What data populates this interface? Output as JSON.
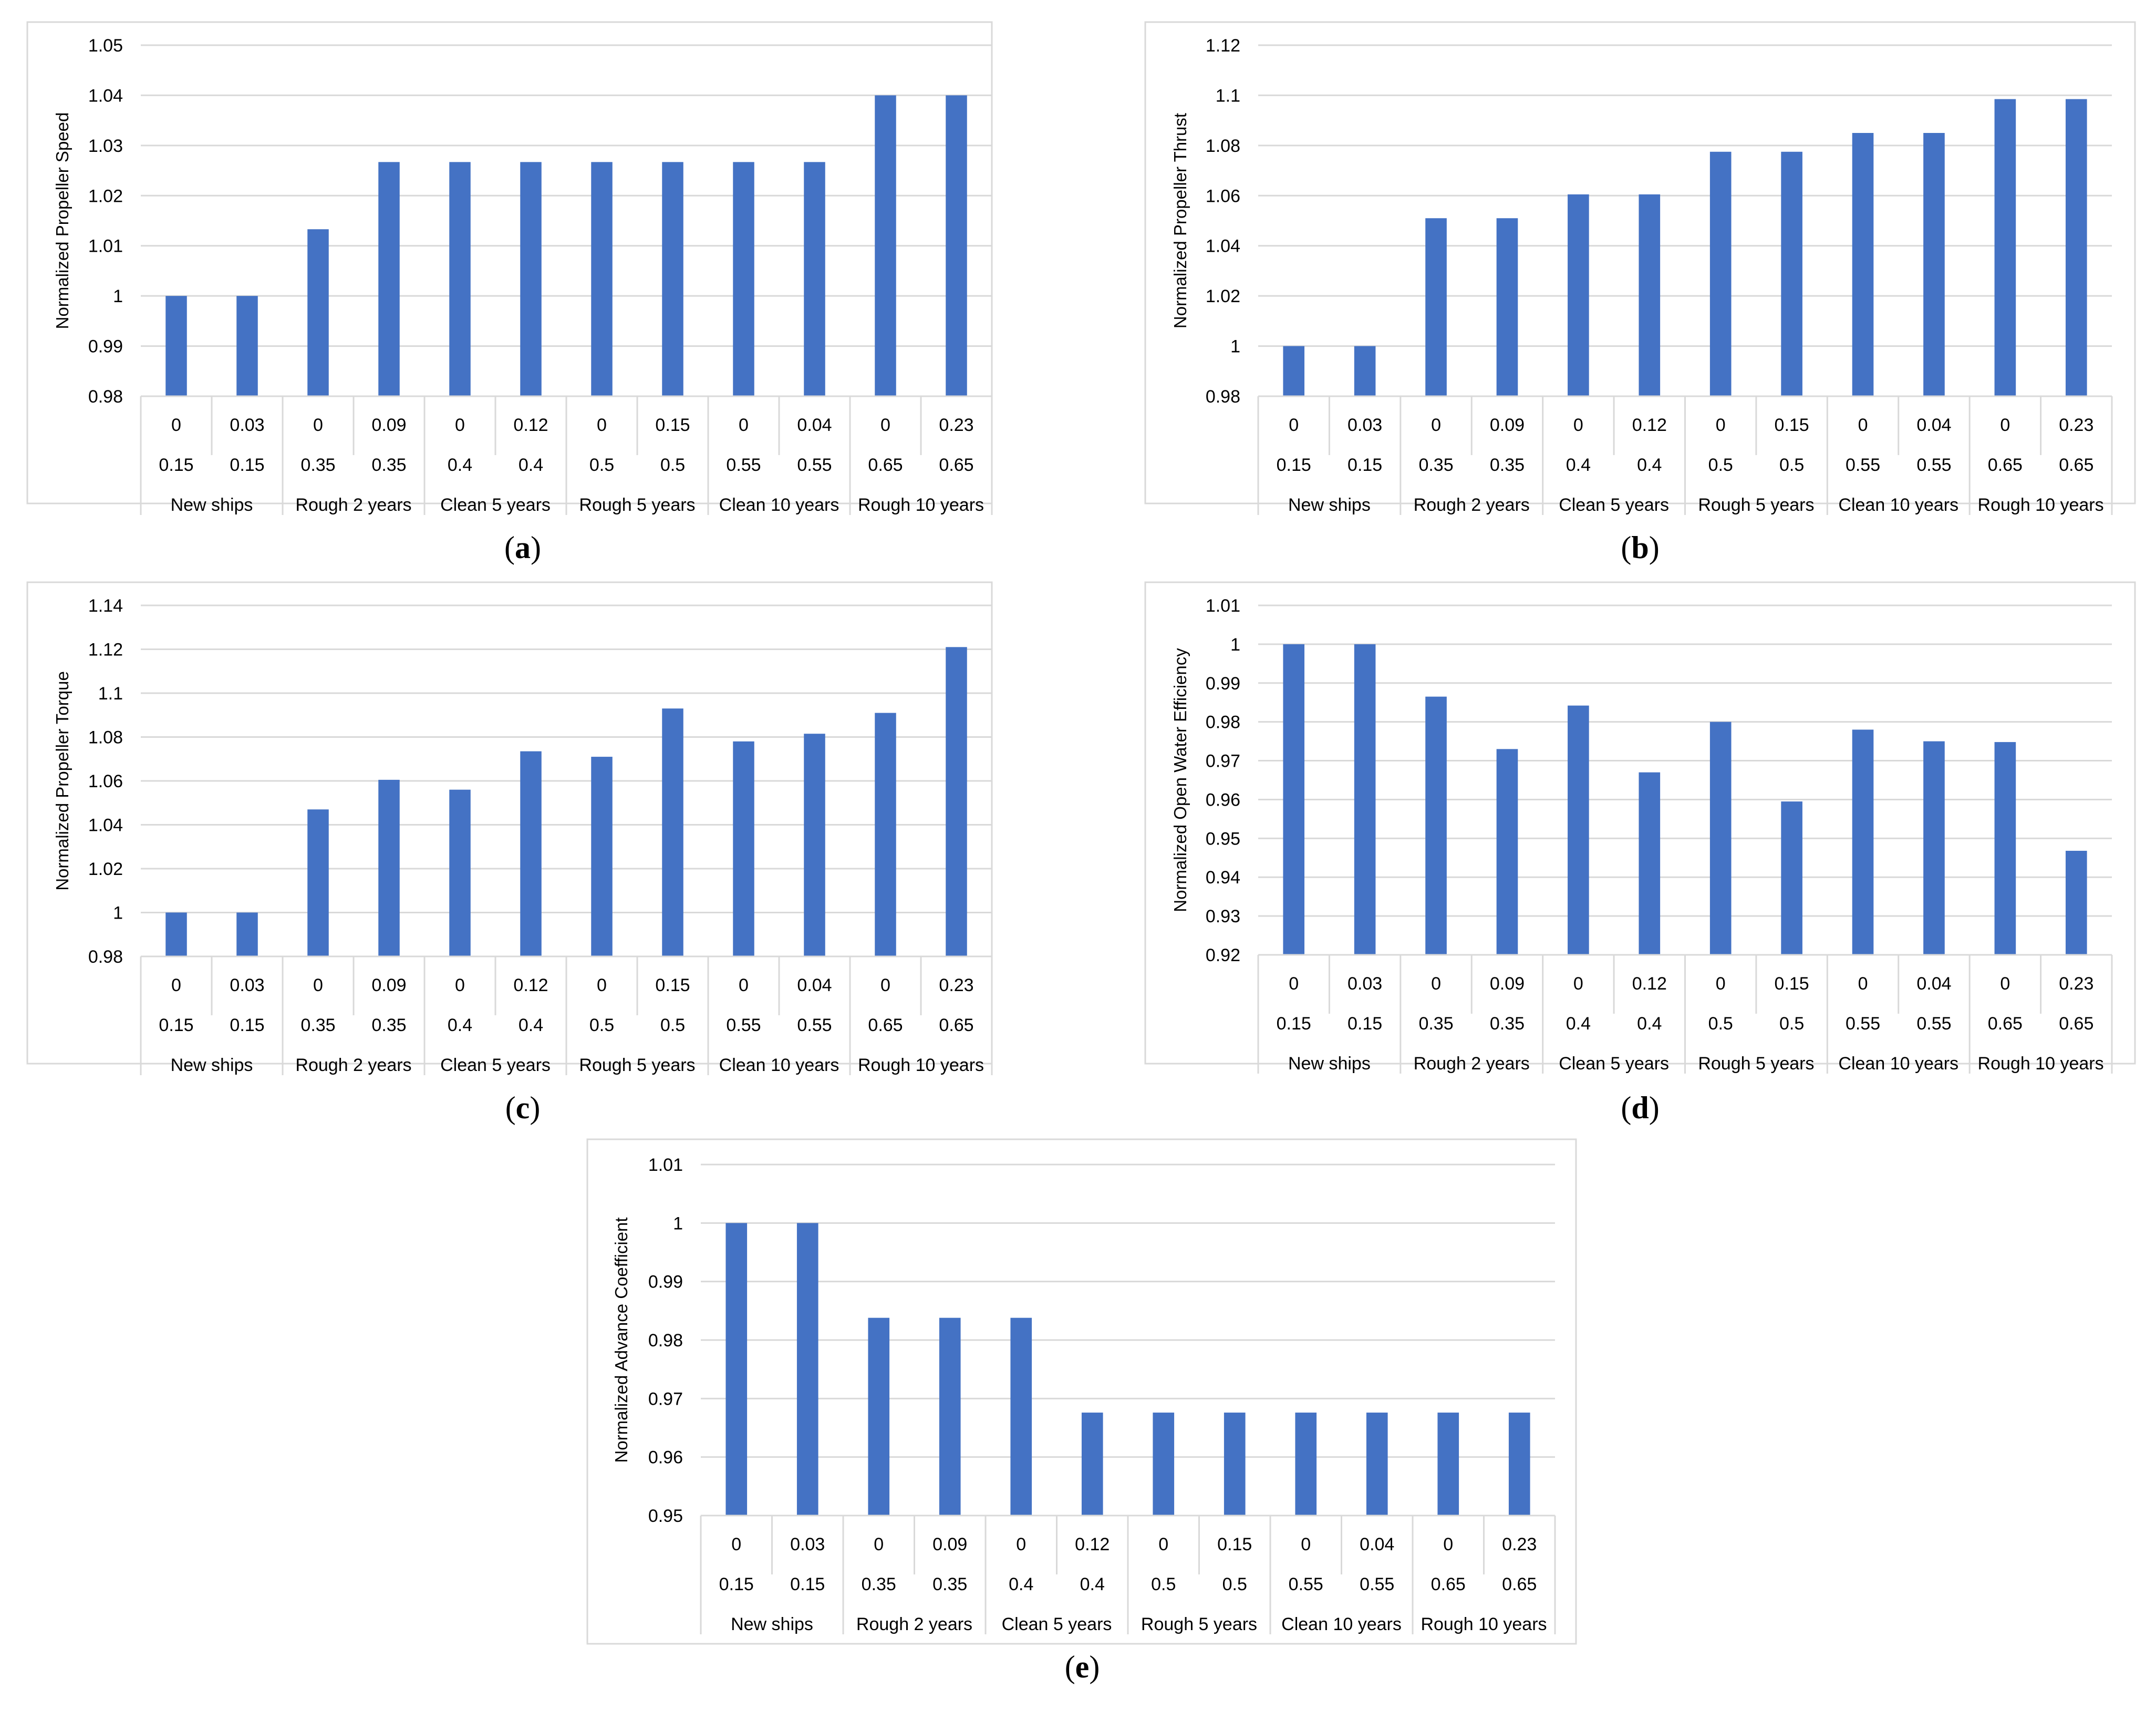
{
  "bar_color": "#4472C4",
  "grid_color": "#D9D9D9",
  "frame_color": "#D9D9D9",
  "chart_data": [
    {
      "type": "bar",
      "panel_label": "(a)",
      "ylabel": "Normalized Propeller Speed",
      "ylim": [
        0.98,
        1.05
      ],
      "yticks": [
        "0.98",
        "0.99",
        "1",
        "1.01",
        "1.02",
        "1.03",
        "1.04",
        "1.05"
      ],
      "cat_row1": [
        "0",
        "0.03",
        "0",
        "0.09",
        "0",
        "0.12",
        "0",
        "0.15",
        "0",
        "0.04",
        "0",
        "0.23"
      ],
      "cat_row2": [
        "0.15",
        "0.15",
        "0.35",
        "0.35",
        "0.4",
        "0.4",
        "0.5",
        "0.5",
        "0.55",
        "0.55",
        "0.65",
        "0.65"
      ],
      "groups": [
        "New ships",
        "Rough 2 years",
        "Clean 5 years",
        "Rough 5 years",
        "Clean 10 years",
        "Rough 10 years"
      ],
      "values": [
        1.0,
        1.0,
        1.0133,
        1.0267,
        1.0267,
        1.0267,
        1.0267,
        1.0267,
        1.0267,
        1.0267,
        1.04,
        1.04
      ],
      "grid": true
    },
    {
      "type": "bar",
      "panel_label": "(b)",
      "ylabel": "Normalized Propeller Thrust",
      "ylim": [
        0.98,
        1.12
      ],
      "yticks": [
        "0.98",
        "1",
        "1.02",
        "1.04",
        "1.06",
        "1.08",
        "1.1",
        "1.12"
      ],
      "cat_row1": [
        "0",
        "0.03",
        "0",
        "0.09",
        "0",
        "0.12",
        "0",
        "0.15",
        "0",
        "0.04",
        "0",
        "0.23"
      ],
      "cat_row2": [
        "0.15",
        "0.15",
        "0.35",
        "0.35",
        "0.4",
        "0.4",
        "0.5",
        "0.5",
        "0.55",
        "0.55",
        "0.65",
        "0.65"
      ],
      "groups": [
        "New ships",
        "Rough 2 years",
        "Clean 5 years",
        "Rough 5 years",
        "Clean 10 years",
        "Rough 10 years"
      ],
      "values": [
        1.0,
        1.0,
        1.051,
        1.051,
        1.0605,
        1.0605,
        1.0775,
        1.0775,
        1.085,
        1.085,
        1.0985,
        1.0985
      ],
      "grid": true
    },
    {
      "type": "bar",
      "panel_label": "(c)",
      "ylabel": "Normalized Propeller Torque",
      "ylim": [
        0.98,
        1.14
      ],
      "yticks": [
        "0.98",
        "1",
        "1.02",
        "1.04",
        "1.06",
        "1.08",
        "1.1",
        "1.12",
        "1.14"
      ],
      "cat_row1": [
        "0",
        "0.03",
        "0",
        "0.09",
        "0",
        "0.12",
        "0",
        "0.15",
        "0",
        "0.04",
        "0",
        "0.23"
      ],
      "cat_row2": [
        "0.15",
        "0.15",
        "0.35",
        "0.35",
        "0.4",
        "0.4",
        "0.5",
        "0.5",
        "0.55",
        "0.55",
        "0.65",
        "0.65"
      ],
      "groups": [
        "New ships",
        "Rough 2 years",
        "Clean 5 years",
        "Rough 5 years",
        "Clean 10 years",
        "Rough 10 years"
      ],
      "values": [
        1.0,
        1.0,
        1.047,
        1.0605,
        1.056,
        1.0735,
        1.071,
        1.093,
        1.078,
        1.0815,
        1.091,
        1.121
      ],
      "grid": true
    },
    {
      "type": "bar",
      "panel_label": "(d)",
      "ylabel": "Normalized Open Water Efficiency",
      "ylim": [
        0.92,
        1.01
      ],
      "yticks": [
        "0.92",
        "0.93",
        "0.94",
        "0.95",
        "0.96",
        "0.97",
        "0.98",
        "0.99",
        "1",
        "1.01"
      ],
      "cat_row1": [
        "0",
        "0.03",
        "0",
        "0.09",
        "0",
        "0.12",
        "0",
        "0.15",
        "0",
        "0.04",
        "0",
        "0.23"
      ],
      "cat_row2": [
        "0.15",
        "0.15",
        "0.35",
        "0.35",
        "0.4",
        "0.4",
        "0.5",
        "0.5",
        "0.55",
        "0.55",
        "0.65",
        "0.65"
      ],
      "groups": [
        "New ships",
        "Rough 2 years",
        "Clean 5 years",
        "Rough 5 years",
        "Clean 10 years",
        "Rough 10 years"
      ],
      "values": [
        1.0,
        1.0,
        0.9865,
        0.973,
        0.9842,
        0.967,
        0.98,
        0.9595,
        0.978,
        0.975,
        0.9748,
        0.9468
      ],
      "grid": true
    },
    {
      "type": "bar",
      "panel_label": "(e)",
      "ylabel": "Normalized Advance Coefficient",
      "ylim": [
        0.95,
        1.01
      ],
      "yticks": [
        "0.95",
        "0.96",
        "0.97",
        "0.98",
        "0.99",
        "1",
        "1.01"
      ],
      "cat_row1": [
        "0",
        "0.03",
        "0",
        "0.09",
        "0",
        "0.12",
        "0",
        "0.15",
        "0",
        "0.04",
        "0",
        "0.23"
      ],
      "cat_row2": [
        "0.15",
        "0.15",
        "0.35",
        "0.35",
        "0.4",
        "0.4",
        "0.5",
        "0.5",
        "0.55",
        "0.55",
        "0.65",
        "0.65"
      ],
      "groups": [
        "New ships",
        "Rough 2 years",
        "Clean 5 years",
        "Rough 5 years",
        "Clean 10 years",
        "Rough 10 years"
      ],
      "values": [
        1.0,
        1.0,
        0.9838,
        0.9838,
        0.9838,
        0.9676,
        0.9676,
        0.9676,
        0.9676,
        0.9676,
        0.9676,
        0.9676
      ],
      "grid": true
    }
  ]
}
